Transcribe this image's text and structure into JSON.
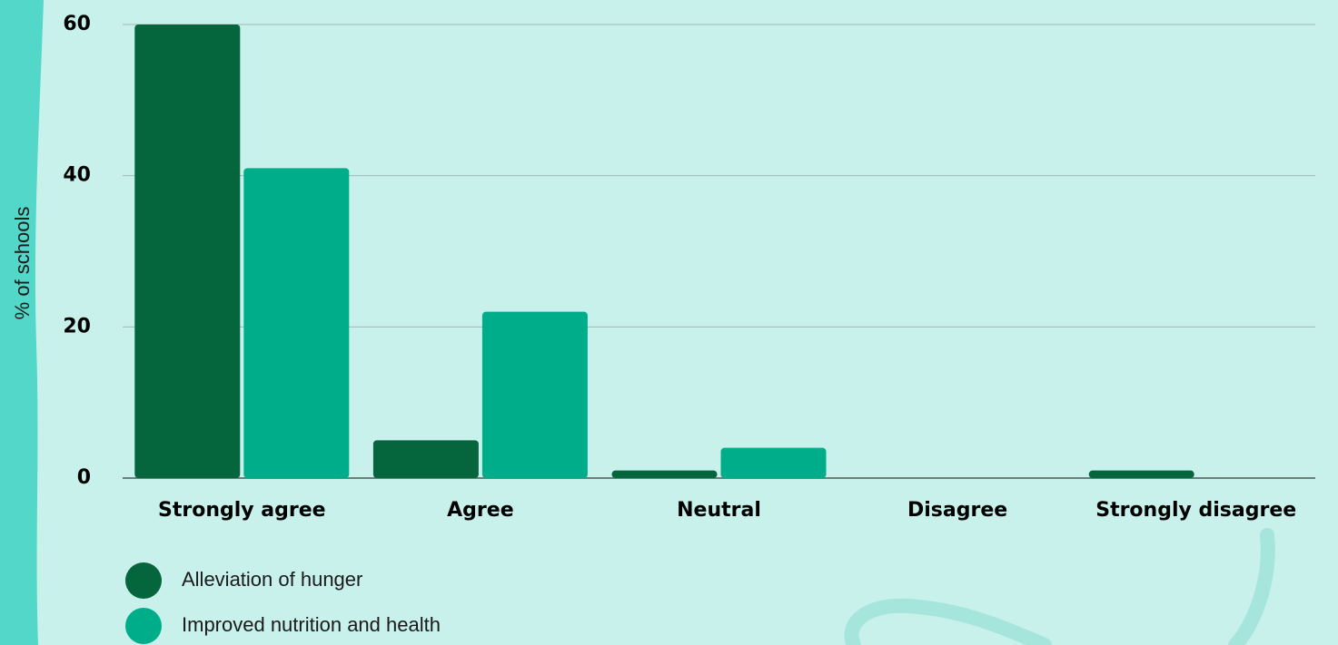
{
  "chart_data": {
    "type": "bar",
    "y_label": "% of schools",
    "categories": [
      "Strongly agree",
      "Agree",
      "Neutral",
      "Disagree",
      "Strongly disagree"
    ],
    "series": [
      {
        "name": "Alleviation of hunger",
        "color": "#05663e",
        "values": [
          60,
          5,
          1,
          0,
          1
        ]
      },
      {
        "name": "Improved nutrition and health",
        "color": "#00ad8a",
        "values": [
          41,
          22,
          4,
          0,
          0
        ]
      }
    ],
    "ylim": [
      0,
      60
    ],
    "yticks": [
      0,
      20,
      40,
      60
    ],
    "grid": true
  }
}
